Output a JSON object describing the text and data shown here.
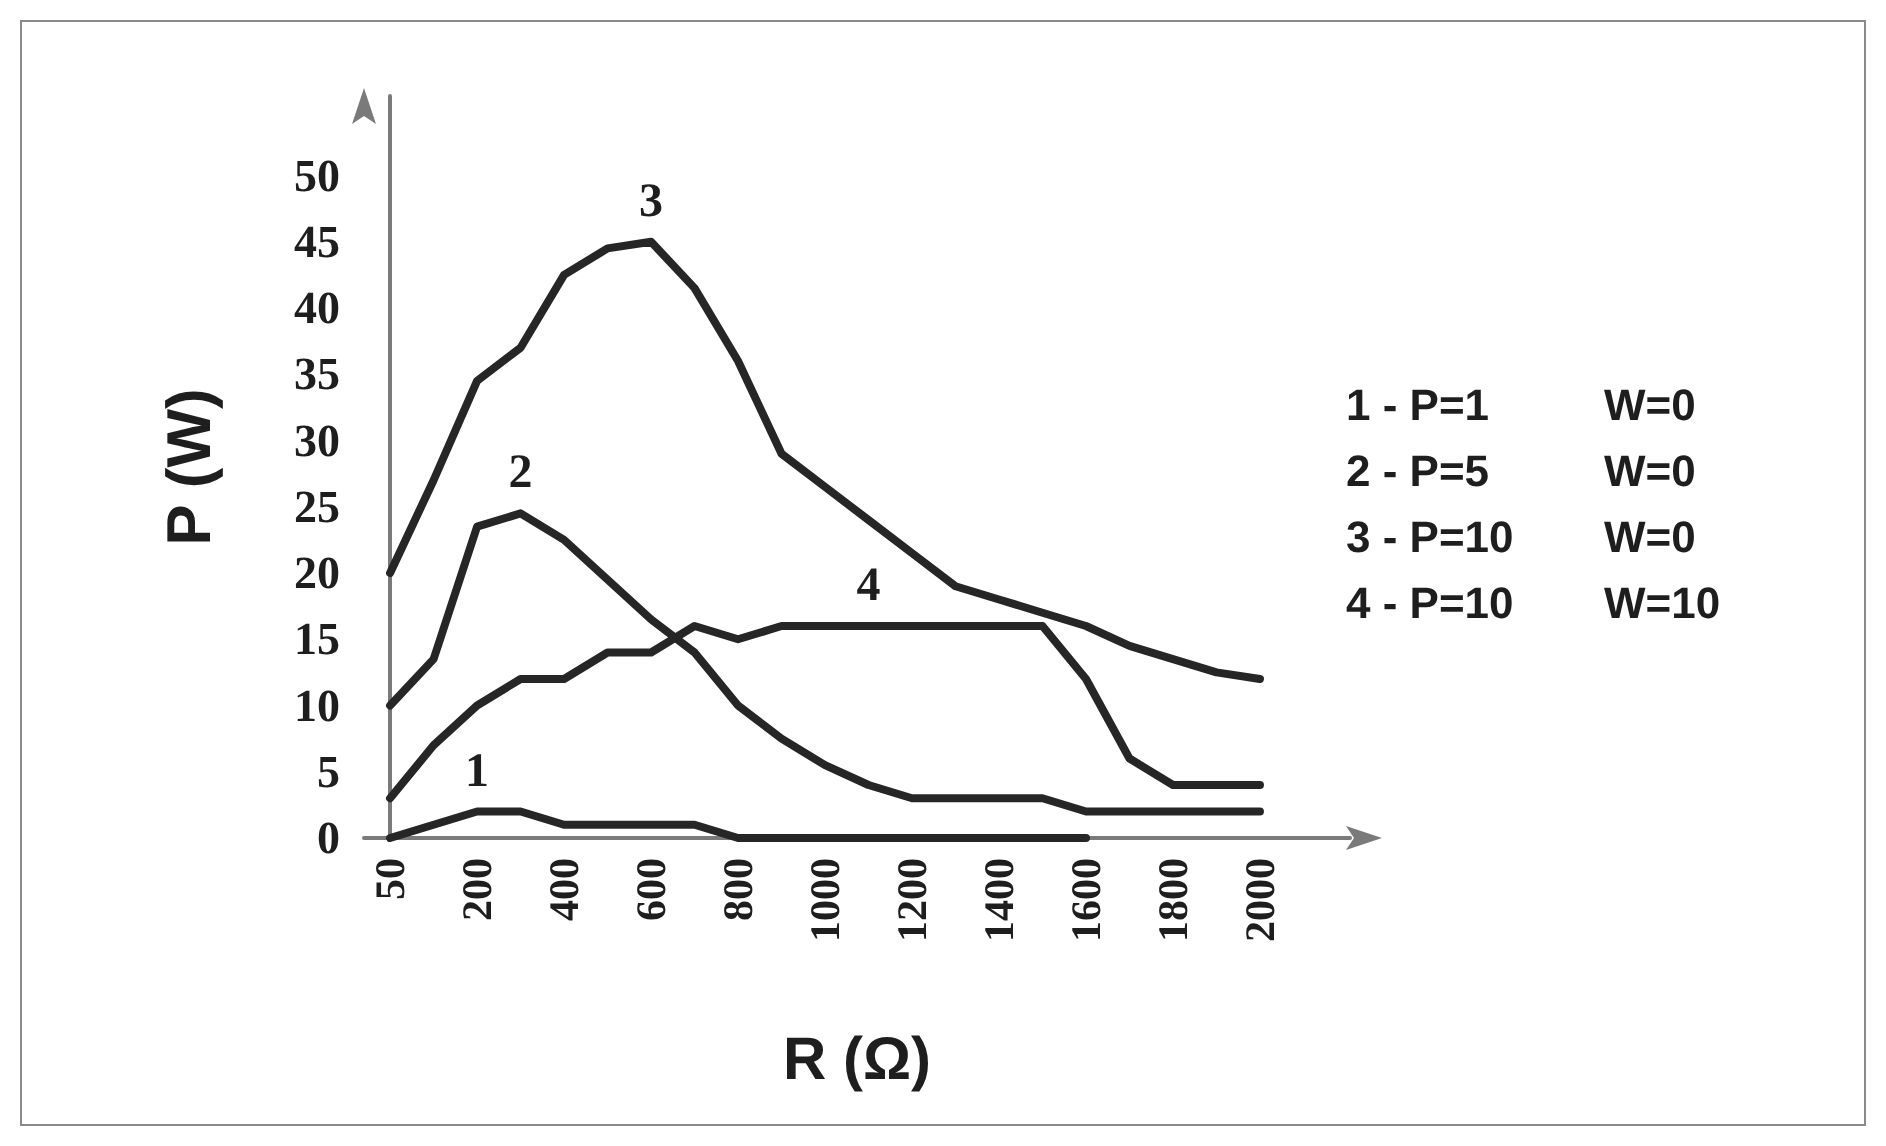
{
  "chart_data": {
    "type": "line",
    "xlabel": "R (Ω)",
    "ylabel": "P (W)",
    "categories": [
      "50",
      null,
      "200",
      null,
      "400",
      null,
      "600",
      null,
      "800",
      null,
      "1000",
      null,
      "1200",
      null,
      "1400",
      null,
      "1600",
      null,
      "1800",
      null,
      "2000"
    ],
    "series": [
      {
        "name": "1",
        "color": "#262626",
        "values": [
          0,
          1,
          2,
          2,
          1,
          1,
          1,
          1,
          0,
          0,
          0,
          0,
          0,
          0,
          0,
          0,
          0,
          null,
          null,
          null,
          null
        ]
      },
      {
        "name": "2",
        "color": "#262626",
        "values": [
          10,
          13.5,
          23.5,
          24.5,
          22.5,
          19.5,
          16.5,
          14,
          10,
          7.5,
          5.5,
          4,
          3,
          3,
          3,
          3,
          2,
          2,
          2,
          2,
          2
        ]
      },
      {
        "name": "3",
        "color": "#262626",
        "values": [
          20,
          27,
          34.5,
          37,
          42.5,
          44.5,
          45,
          41.5,
          36,
          29,
          26.5,
          24,
          21.5,
          19,
          18,
          17,
          16,
          14.5,
          13.5,
          12.5,
          12
        ]
      },
      {
        "name": "4",
        "color": "#262626",
        "values": [
          3,
          7,
          10,
          12,
          12,
          14,
          14,
          16,
          15,
          16,
          16,
          16,
          16,
          16,
          16,
          16,
          12,
          6,
          4,
          4,
          4
        ]
      }
    ],
    "ylim": [
      0,
      56
    ],
    "yticks": [
      0,
      5,
      10,
      15,
      20,
      25,
      30,
      35,
      40,
      45,
      50
    ],
    "annotations": [
      "1 - P=1   W=0",
      "2 - P=5   W=0",
      "3 - P=10   W=0",
      "4 - P=10   W=10"
    ]
  }
}
